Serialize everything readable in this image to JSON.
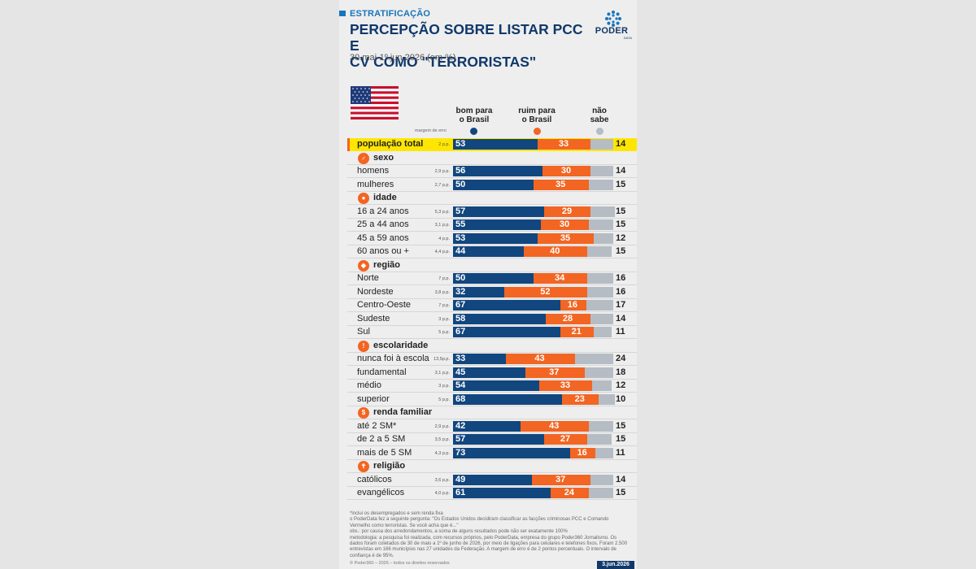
{
  "header": {
    "tag": "ESTRATIFICAÇÃO",
    "title": "PERCEPÇÃO SOBRE LISTAR PCC E\nCV COMO \"TERRORISTAS\"",
    "subtitle": "30.mai-1º.jun.2026 (em %)",
    "logo_text": "PODER",
    "logo_sub": "DATA"
  },
  "colors": {
    "bom": "#11467f",
    "ruim": "#f26522",
    "nao_sabe": "#b5bcc4",
    "highlight": "#ffe600"
  },
  "legend": {
    "margin_label": "margem de erro",
    "bom": "bom para\no Brasil",
    "ruim": "ruim para\no Brasil",
    "nao_sabe": "não\nsabe"
  },
  "chart_data": {
    "type": "bar",
    "stacked": true,
    "orientation": "horizontal",
    "series_names": [
      "bom para o Brasil",
      "ruim para o Brasil",
      "não sabe"
    ],
    "rows": [
      {
        "kind": "total",
        "label": "população total",
        "moe": "2 p.p.",
        "values": [
          53,
          33,
          14
        ]
      },
      {
        "kind": "category",
        "label": "sexo",
        "icon": "gender-icon"
      },
      {
        "kind": "row",
        "label": "homens",
        "moe": "2,9 p.p.",
        "values": [
          56,
          30,
          14
        ]
      },
      {
        "kind": "row",
        "label": "mulheres",
        "moe": "2,7 p.p.",
        "values": [
          50,
          35,
          15
        ]
      },
      {
        "kind": "category",
        "label": "idade",
        "icon": "person-icon"
      },
      {
        "kind": "row",
        "label": "16 a 24 anos",
        "moe": "5,3 p.p.",
        "values": [
          57,
          29,
          15
        ]
      },
      {
        "kind": "row",
        "label": "25 a 44 anos",
        "moe": "3,1 p.p.",
        "values": [
          55,
          30,
          15
        ]
      },
      {
        "kind": "row",
        "label": "45 a 59 anos",
        "moe": "4 p.p.",
        "values": [
          53,
          35,
          12
        ]
      },
      {
        "kind": "row",
        "label": "60 anos ou +",
        "moe": "4,4 p.p.",
        "values": [
          44,
          40,
          15
        ]
      },
      {
        "kind": "category",
        "label": "região",
        "icon": "map-icon"
      },
      {
        "kind": "row",
        "label": "Norte",
        "moe": "7 p.p.",
        "values": [
          50,
          34,
          16
        ]
      },
      {
        "kind": "row",
        "label": "Nordeste",
        "moe": "3,8 p.p.",
        "values": [
          32,
          52,
          16
        ]
      },
      {
        "kind": "row",
        "label": "Centro-Oeste",
        "moe": "7 p.p.",
        "values": [
          67,
          16,
          17
        ]
      },
      {
        "kind": "row",
        "label": "Sudeste",
        "moe": "3 p.p.",
        "values": [
          58,
          28,
          14
        ]
      },
      {
        "kind": "row",
        "label": "Sul",
        "moe": "5 p.p.",
        "values": [
          67,
          21,
          11
        ]
      },
      {
        "kind": "category",
        "label": "escolaridade",
        "icon": "pencil-icon"
      },
      {
        "kind": "row",
        "label": "nunca foi à escola",
        "moe": "13,5p.p.",
        "values": [
          33,
          43,
          24
        ]
      },
      {
        "kind": "row",
        "label": "fundamental",
        "moe": "3,1 p.p.",
        "values": [
          45,
          37,
          18
        ]
      },
      {
        "kind": "row",
        "label": "médio",
        "moe": "3 p.p.",
        "values": [
          54,
          33,
          12
        ]
      },
      {
        "kind": "row",
        "label": "superior",
        "moe": "5 p.p.",
        "values": [
          68,
          23,
          10
        ]
      },
      {
        "kind": "category",
        "label": "renda familiar",
        "icon": "dollar-icon"
      },
      {
        "kind": "row",
        "label": "até 2 SM*",
        "moe": "2,9 p.p.",
        "values": [
          42,
          43,
          15
        ]
      },
      {
        "kind": "row",
        "label": "de 2 a 5 SM",
        "moe": "3,5 p.p.",
        "values": [
          57,
          27,
          15
        ]
      },
      {
        "kind": "row",
        "label": "mais de 5 SM",
        "moe": "4,3 p.p.",
        "values": [
          73,
          16,
          11
        ]
      },
      {
        "kind": "category",
        "label": "religião",
        "icon": "cross-icon"
      },
      {
        "kind": "row",
        "label": "católicos",
        "moe": "3,6 p.p.",
        "values": [
          49,
          37,
          14
        ]
      },
      {
        "kind": "row",
        "label": "evangélicos",
        "moe": "4,0 p.p.",
        "values": [
          61,
          24,
          15
        ]
      }
    ]
  },
  "footnote": {
    "lines": [
      "*inclui os desempregados e sem renda fixa",
      "o PoderData fez a seguinte pergunta: \"Os Estados Unidos decidiram classificar as facções criminosas PCC e Comando Vermelho como terroristas. Se você acha que é...\"",
      "obs.: por causa dos arredondamentos, a soma de alguns resultados pode não ser exatamente 100%",
      "metodologia: a pesquisa foi realizada, com recursos próprios, pelo PoderData, empresa do grupo Poder360 Jornalismo. Os dados foram coletados de 30 de maio a 1º de junho de 2026, por meio de ligações para celulares e telefones fixos. Foram 2.500 entrevistas em 166 municípios nas 27 unidades da Federação. A margem de erro é de 2 pontos percentuais. O intervalo de confiança é de 95%."
    ],
    "copyright": "© Poder360 – 2026 – todos os direitos reservados",
    "date": "3.jun.2026"
  }
}
